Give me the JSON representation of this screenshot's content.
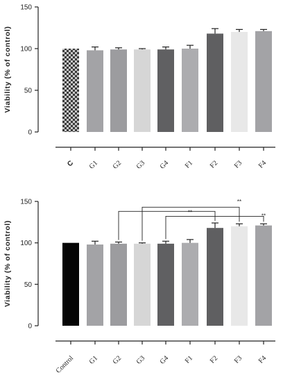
{
  "chart_data": [
    {
      "type": "bar",
      "ylabel": "Viability (% of control)",
      "ylim": [
        0,
        150
      ],
      "yticks": [
        0,
        50,
        100,
        150
      ],
      "grid": false,
      "categories": [
        "C",
        "G1",
        "G2",
        "G3",
        "G4",
        "F1",
        "F2",
        "F3",
        "F4"
      ],
      "values": [
        100,
        98,
        99,
        99,
        99,
        100,
        118,
        120,
        121
      ],
      "errors": [
        0,
        4,
        2,
        1,
        3,
        4,
        6,
        3,
        2
      ],
      "colors": [
        "checker",
        "#a3a3a6",
        "#9c9c9f",
        "#d6d6d6",
        "#606062",
        "#acacaf",
        "#5f5f61",
        "#e8e8e8",
        "#a3a3a6"
      ]
    },
    {
      "type": "bar",
      "ylabel": "Viability (% of control)",
      "ylim": [
        0,
        150
      ],
      "yticks": [
        0,
        50,
        100,
        150
      ],
      "grid": false,
      "categories": [
        "Control",
        "G1",
        "G2",
        "G3",
        "G4",
        "F1",
        "F2",
        "F3",
        "F4"
      ],
      "values": [
        100,
        98,
        99,
        99,
        99,
        100,
        118,
        120,
        121
      ],
      "errors": [
        0,
        4,
        2,
        1,
        3,
        4,
        6,
        3,
        2
      ],
      "colors": [
        "#050505",
        "#a3a3a6",
        "#9c9c9f",
        "#d6d6d6",
        "#606062",
        "#acacaf",
        "#5f5f61",
        "#e8e8e8",
        "#a3a3a6"
      ],
      "significance": [
        {
          "from": "G2",
          "to": "F2",
          "y": 138,
          "label": ""
        },
        {
          "from": "G3",
          "to": "F3",
          "y": 143,
          "label": ""
        },
        {
          "from": "G4",
          "to": "F4",
          "y": 132,
          "label": ""
        }
      ],
      "sig_labels": [
        {
          "label": "**",
          "at": "F3",
          "y": 145
        },
        {
          "label": "**",
          "at": "F1",
          "y": 132
        },
        {
          "label": "**",
          "at": "F4",
          "y": 128
        }
      ]
    }
  ]
}
